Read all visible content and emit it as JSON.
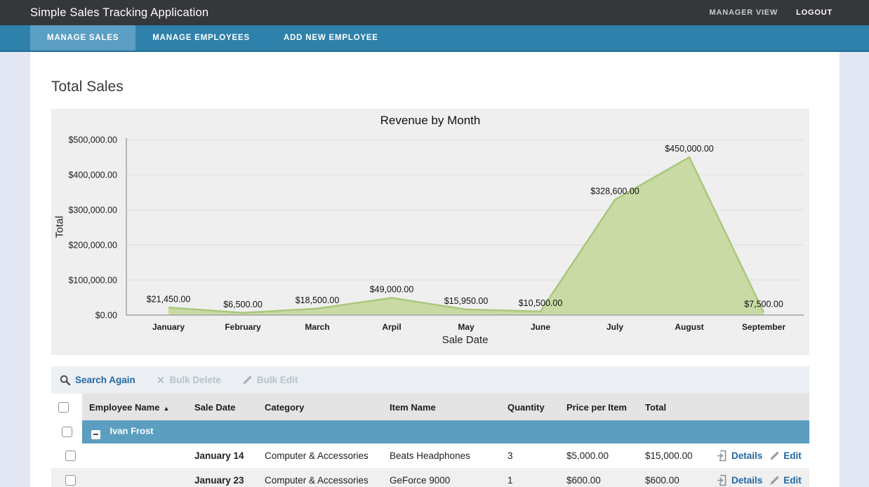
{
  "header": {
    "title": "Simple Sales Tracking Application",
    "manager_view_label": "MANAGER VIEW",
    "logout_label": "LOGOUT"
  },
  "nav": {
    "tabs": [
      {
        "label": "MANAGE SALES",
        "active": true
      },
      {
        "label": "MANAGE EMPLOYEES",
        "active": false
      },
      {
        "label": "ADD NEW EMPLOYEE",
        "active": false
      }
    ]
  },
  "page": {
    "heading": "Total Sales"
  },
  "chart_data": {
    "type": "area",
    "title": "Revenue by Month",
    "xlabel": "Sale Date",
    "ylabel": "Total",
    "categories": [
      "January",
      "February",
      "March",
      "Arpil",
      "May",
      "June",
      "July",
      "August",
      "September"
    ],
    "values": [
      21450,
      6500,
      18500,
      49000,
      15950,
      10500,
      328600,
      450000,
      7500
    ],
    "value_labels": [
      "$21,450.00",
      "$6,500.00",
      "$18,500.00",
      "$49,000.00",
      "$15,950.00",
      "$10,500.00",
      "$328,600.00",
      "$450,000.00",
      "$7,500.00"
    ],
    "ylim": [
      0,
      500000
    ],
    "ytick_step": 100000,
    "ytick_labels": [
      "$0.00",
      "$100,000.00",
      "$200,000.00",
      "$300,000.00",
      "$400,000.00",
      "$500,000.00"
    ],
    "grid": true,
    "legend": "none",
    "fill_color": "#c9daa5",
    "stroke_color": "#a9c87c"
  },
  "toolbar": {
    "search_again_label": "Search Again",
    "bulk_delete_label": "Bulk Delete",
    "bulk_edit_label": "Bulk Edit"
  },
  "table": {
    "columns": [
      "Employee Name",
      "Sale Date",
      "Category",
      "Item Name",
      "Quantity",
      "Price per Item",
      "Total"
    ],
    "sorted_by": "Employee Name",
    "sort_direction": "ascending",
    "group": {
      "name": "Ivan Frost"
    },
    "rows": [
      {
        "employee_name": "",
        "sale_date": "January 14",
        "category": "Computer & Accessories",
        "item_name": "Beats Headphones",
        "quantity": "3",
        "price_per_item": "$5,000.00",
        "total": "$15,000.00",
        "details_label": "Details",
        "edit_label": "Edit"
      },
      {
        "employee_name": "",
        "sale_date": "January 23",
        "category": "Computer & Accessories",
        "item_name": "GeForce 9000",
        "quantity": "1",
        "price_per_item": "$600.00",
        "total": "$600.00",
        "details_label": "Details",
        "edit_label": "Edit"
      }
    ]
  },
  "icons": {
    "sort_ascending": "▲",
    "x_mark": "✕"
  },
  "colors": {
    "header_dark": "#35373a",
    "accent_blue": "#2e81ab",
    "accent_blue_light": "#5c9fc4",
    "group_blue": "#5b9ec0",
    "link_blue": "#2268a2",
    "page_bg": "#e3e7f3",
    "chart_fill_green": "#c9daa5",
    "chart_stroke_green": "#a9c87c"
  }
}
